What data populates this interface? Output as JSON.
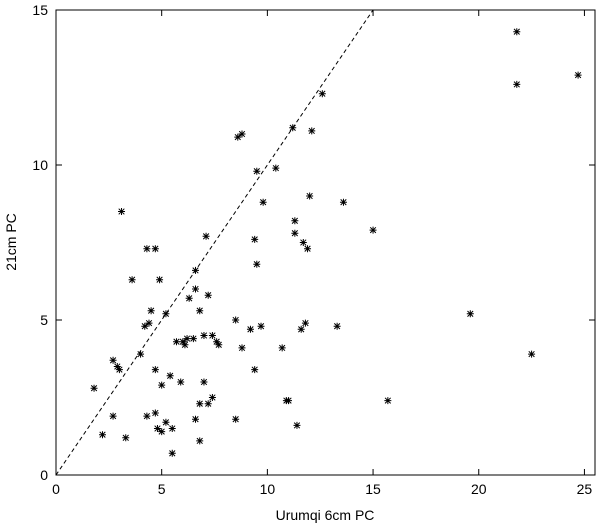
{
  "chart_data": {
    "type": "scatter",
    "title": "",
    "xlabel": "Urumqi 6cm PC",
    "ylabel": "21cm PC",
    "xlim": [
      0,
      25.5
    ],
    "ylim": [
      0,
      15
    ],
    "xticks": [
      0,
      5,
      10,
      15,
      20,
      25
    ],
    "yticks": [
      0,
      5,
      10,
      15
    ],
    "grid": false,
    "reference_line": {
      "type": "y=x",
      "style": "dashed"
    },
    "series": [
      {
        "marker": "asterisk",
        "color": "#000000",
        "points": [
          [
            1.8,
            2.8
          ],
          [
            2.2,
            1.3
          ],
          [
            2.7,
            3.7
          ],
          [
            2.7,
            1.9
          ],
          [
            2.9,
            3.5
          ],
          [
            3.0,
            3.4
          ],
          [
            3.1,
            8.5
          ],
          [
            3.3,
            1.2
          ],
          [
            3.6,
            6.3
          ],
          [
            4.0,
            3.9
          ],
          [
            4.2,
            4.8
          ],
          [
            4.3,
            7.3
          ],
          [
            4.3,
            1.9
          ],
          [
            4.4,
            4.9
          ],
          [
            4.5,
            5.3
          ],
          [
            4.7,
            7.3
          ],
          [
            4.7,
            3.4
          ],
          [
            4.7,
            2.0
          ],
          [
            4.8,
            1.5
          ],
          [
            4.9,
            6.3
          ],
          [
            5.0,
            2.9
          ],
          [
            5.0,
            1.4
          ],
          [
            5.2,
            5.2
          ],
          [
            5.2,
            1.7
          ],
          [
            5.4,
            3.2
          ],
          [
            5.5,
            0.7
          ],
          [
            5.5,
            1.5
          ],
          [
            5.7,
            4.3
          ],
          [
            5.9,
            3.0
          ],
          [
            6.0,
            4.3
          ],
          [
            6.1,
            4.2
          ],
          [
            6.2,
            4.4
          ],
          [
            6.3,
            5.7
          ],
          [
            6.5,
            4.4
          ],
          [
            6.6,
            6.6
          ],
          [
            6.6,
            6.0
          ],
          [
            6.6,
            1.8
          ],
          [
            6.8,
            5.3
          ],
          [
            6.8,
            2.3
          ],
          [
            6.8,
            1.1
          ],
          [
            7.0,
            4.5
          ],
          [
            7.0,
            3.0
          ],
          [
            7.1,
            7.7
          ],
          [
            7.2,
            5.8
          ],
          [
            7.2,
            2.3
          ],
          [
            7.4,
            4.5
          ],
          [
            7.4,
            2.5
          ],
          [
            7.6,
            4.3
          ],
          [
            7.7,
            4.2
          ],
          [
            8.5,
            5.0
          ],
          [
            8.5,
            1.8
          ],
          [
            8.6,
            10.9
          ],
          [
            8.8,
            11.0
          ],
          [
            8.8,
            4.1
          ],
          [
            9.2,
            4.7
          ],
          [
            9.4,
            7.6
          ],
          [
            9.4,
            3.4
          ],
          [
            9.5,
            9.8
          ],
          [
            9.5,
            6.8
          ],
          [
            9.7,
            4.8
          ],
          [
            9.8,
            8.8
          ],
          [
            10.4,
            9.9
          ],
          [
            10.7,
            4.1
          ],
          [
            10.9,
            2.4
          ],
          [
            11.0,
            2.4
          ],
          [
            11.2,
            11.2
          ],
          [
            11.3,
            8.2
          ],
          [
            11.3,
            7.8
          ],
          [
            11.4,
            1.6
          ],
          [
            11.6,
            4.7
          ],
          [
            11.7,
            7.5
          ],
          [
            11.8,
            4.9
          ],
          [
            11.9,
            7.3
          ],
          [
            12.0,
            9.0
          ],
          [
            12.1,
            11.1
          ],
          [
            12.6,
            12.3
          ],
          [
            13.3,
            4.8
          ],
          [
            13.6,
            8.8
          ],
          [
            15.0,
            7.9
          ],
          [
            15.7,
            2.4
          ],
          [
            19.6,
            5.2
          ],
          [
            21.8,
            14.3
          ],
          [
            21.8,
            12.6
          ],
          [
            22.5,
            3.9
          ],
          [
            24.7,
            12.9
          ]
        ]
      }
    ]
  }
}
